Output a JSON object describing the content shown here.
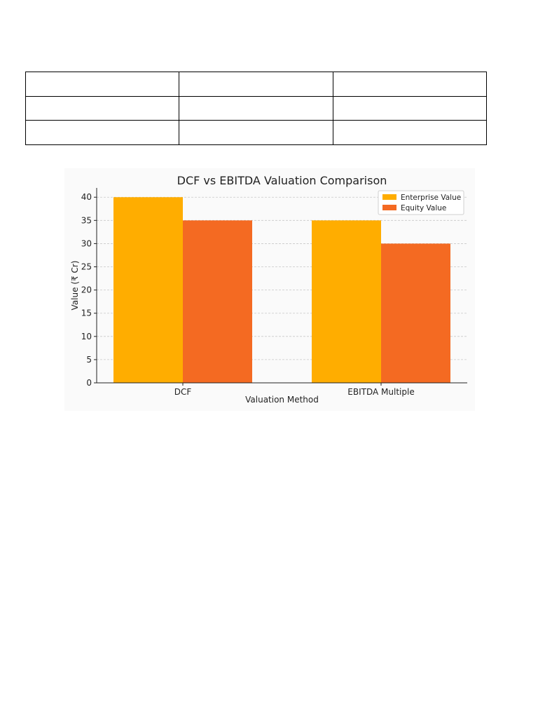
{
  "table": {
    "rows": [
      [
        "",
        "",
        ""
      ],
      [
        "",
        "",
        ""
      ],
      [
        "",
        "",
        ""
      ]
    ]
  },
  "chart_data": {
    "type": "bar",
    "title": "DCF vs EBITDA Valuation Comparison",
    "xlabel": "Valuation Method",
    "ylabel": "Value (₹ Cr)",
    "categories": [
      "DCF",
      "EBITDA Multiple"
    ],
    "series": [
      {
        "name": "Enterprise Value",
        "values": [
          40,
          35
        ],
        "color": "#ffad00"
      },
      {
        "name": "Equity Value",
        "values": [
          35,
          30
        ],
        "color": "#f46a22"
      }
    ],
    "ylim": [
      0,
      42
    ],
    "yticks": [
      0,
      5,
      10,
      15,
      20,
      25,
      30,
      35,
      40
    ],
    "grid": true,
    "legend": "top-right"
  }
}
